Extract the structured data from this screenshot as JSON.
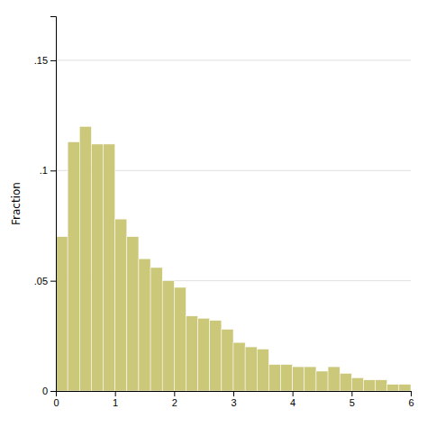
{
  "chart_data": {
    "type": "histogram",
    "ylabel": "Fraction",
    "color": "#ccc87a",
    "bins": [
      0.0,
      0.2,
      0.4,
      0.6,
      0.8,
      1.0,
      1.2,
      1.4,
      1.6,
      1.8,
      2.0,
      2.2,
      2.4,
      2.6,
      2.8,
      3.0,
      3.2,
      3.4,
      3.6,
      3.8,
      4.0,
      4.2,
      4.4,
      4.6,
      4.8,
      5.0,
      5.2,
      5.4,
      5.6,
      5.8,
      6.0
    ],
    "values": [
      0.07,
      0.113,
      0.12,
      0.112,
      0.112,
      0.078,
      0.07,
      0.06,
      0.056,
      0.05,
      0.047,
      0.034,
      0.033,
      0.032,
      0.028,
      0.022,
      0.02,
      0.019,
      0.012,
      0.012,
      0.011,
      0.011,
      0.009,
      0.011,
      0.008,
      0.006,
      0.005,
      0.005,
      0.003,
      0.003
    ],
    "xlim": [
      0,
      6
    ],
    "ylim": [
      0,
      0.17
    ],
    "xticks": [
      0,
      1,
      2,
      3,
      4,
      5,
      6
    ],
    "yticks": [
      0,
      {
        "value": 0.05,
        "label": ".05"
      },
      {
        "value": 0.1,
        "label": ".1"
      },
      {
        "value": 0.15,
        "label": ".15"
      }
    ],
    "grid": true
  }
}
